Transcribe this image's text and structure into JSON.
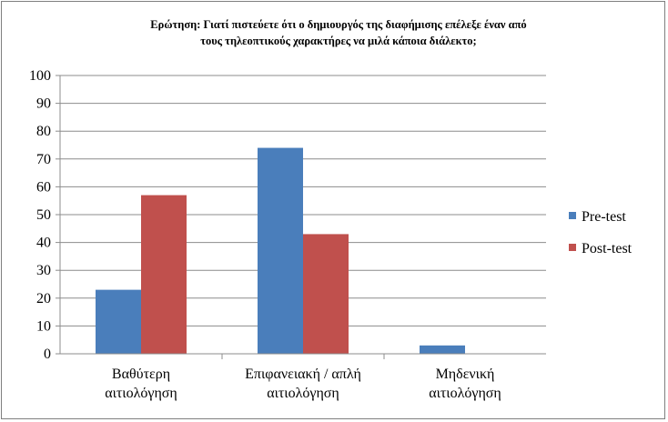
{
  "chart_data": {
    "type": "bar",
    "title_lines": [
      "Ερώτηση: Γιατί πιστεύετε ότι ο δημιουργός της διαφήμισης επέλεξε έναν από",
      "τους τηλεοπτικούς χαρακτήρες να μιλά κάποια διάλεκτο;"
    ],
    "categories": [
      [
        "Βαθύτερη",
        "αιτιολόγηση"
      ],
      [
        "Επιφανειακή / απλή",
        "αιτιολόγηση"
      ],
      [
        "Μηδενική",
        "αιτιολόγηση"
      ]
    ],
    "series": [
      {
        "name": "Pre-test",
        "color": "#4a7ebb",
        "values": [
          23,
          74,
          3
        ]
      },
      {
        "name": "Post-test",
        "color": "#c0504d",
        "values": [
          57,
          43,
          0
        ]
      }
    ],
    "ylim": [
      0,
      100
    ],
    "yticks": [
      0,
      10,
      20,
      30,
      40,
      50,
      60,
      70,
      80,
      90,
      100
    ],
    "grid": true,
    "legend_position": "right"
  }
}
